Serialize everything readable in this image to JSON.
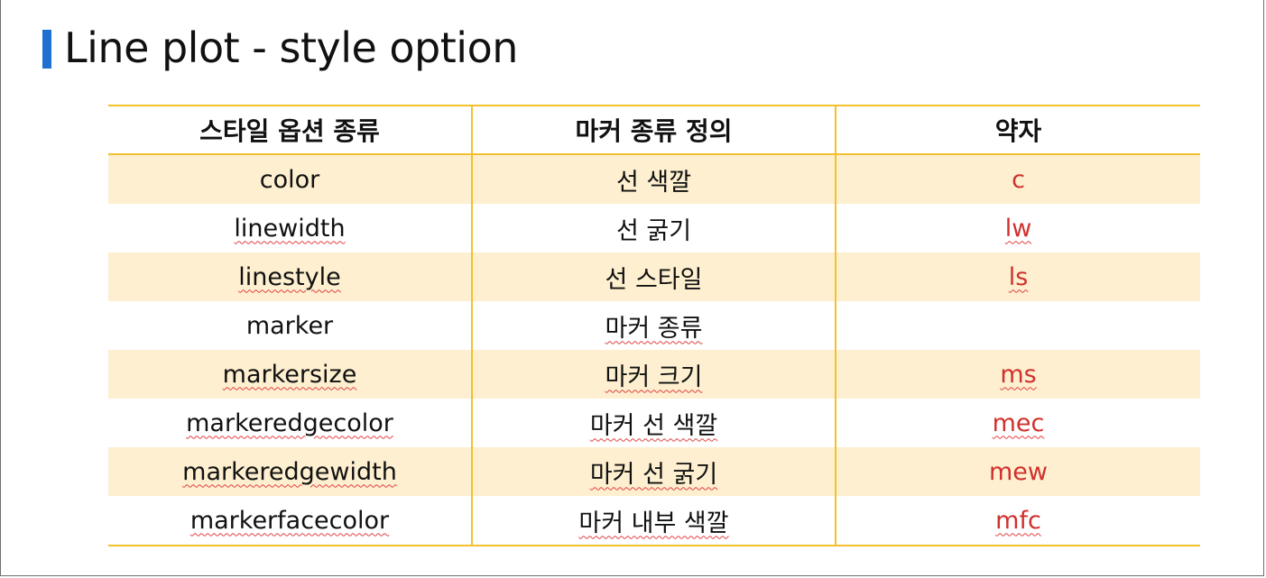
{
  "title": "Line plot - style option",
  "colors": {
    "accent_bar": "#1f6fd0",
    "table_rule": "#f2c12e",
    "band_fill": "#fdefcf",
    "abbreviation_text": "#d0312d"
  },
  "table": {
    "headers": [
      "스타일 옵션 종류",
      "마커 종류 정의",
      "약자"
    ],
    "rows": [
      {
        "option": "color",
        "definition": "선 색깔",
        "abbr": "c"
      },
      {
        "option": "linewidth",
        "definition": "선 굵기",
        "abbr": "lw"
      },
      {
        "option": "linestyle",
        "definition": "선 스타일",
        "abbr": "ls"
      },
      {
        "option": "marker",
        "definition": "마커 종류",
        "abbr": ""
      },
      {
        "option": "markersize",
        "definition": "마커 크기",
        "abbr": "ms"
      },
      {
        "option": "markeredgecolor",
        "definition": "마커 선 색깔",
        "abbr": "mec"
      },
      {
        "option": "markeredgewidth",
        "definition": "마커 선 굵기",
        "abbr": "mew"
      },
      {
        "option": "markerfacecolor",
        "definition": "마커 내부 색깔",
        "abbr": "mfc"
      }
    ]
  }
}
